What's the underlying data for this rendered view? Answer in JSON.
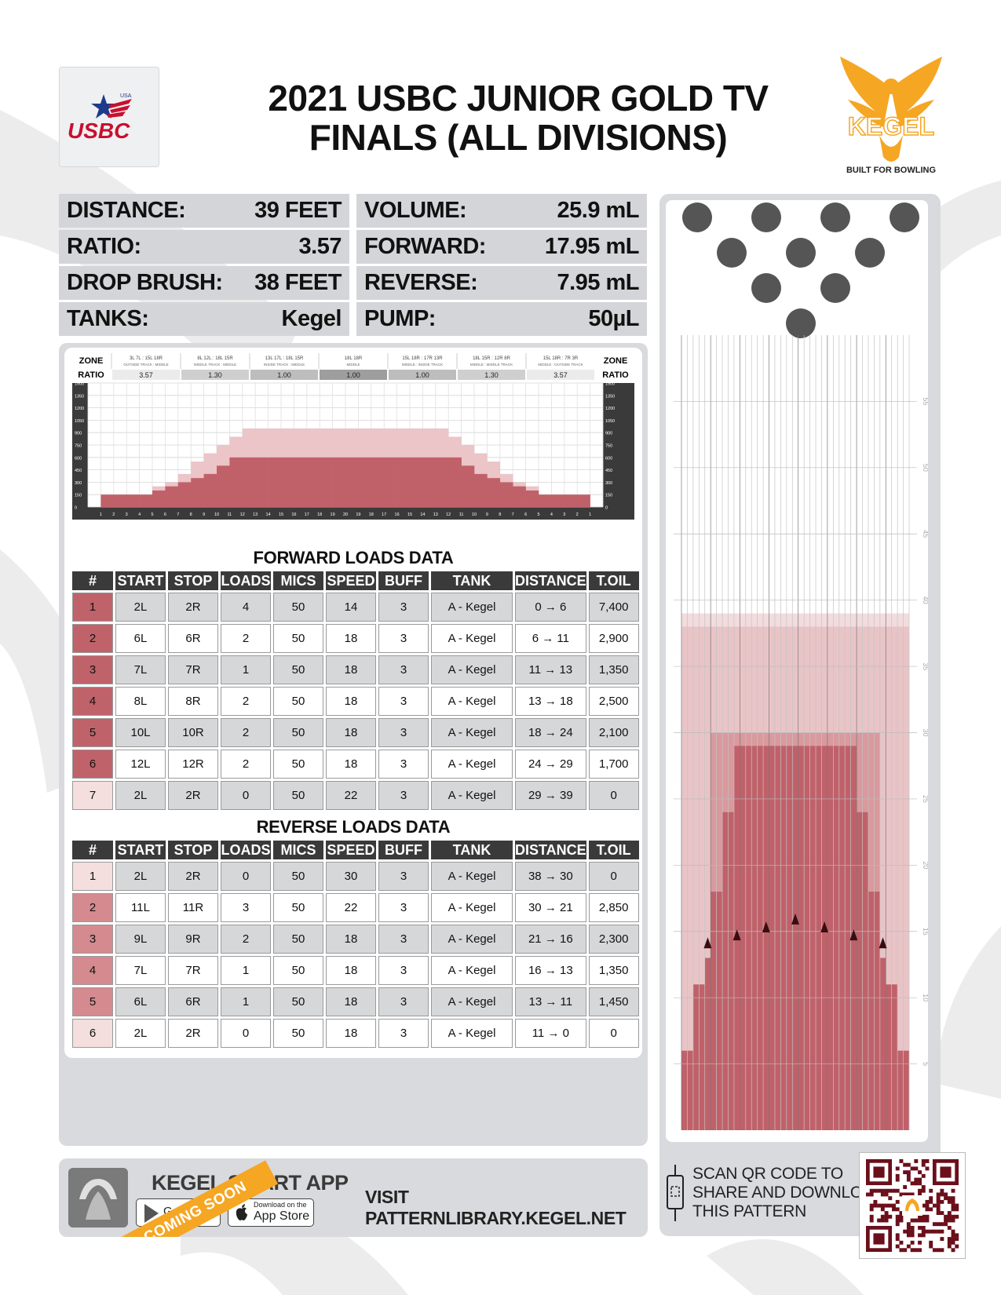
{
  "title": "2021 USBC JUNIOR GOLD TV FINALS (ALL DIVISIONS)",
  "logos": {
    "usbc_text": "USBC",
    "usbc_small": "USA",
    "kegel_text": "KEGEL",
    "kegel_tagline": "BUILT FOR BOWLING"
  },
  "stats_left": [
    {
      "label": "DISTANCE:",
      "value": "39 FEET"
    },
    {
      "label": "RATIO:",
      "value": "3.57"
    },
    {
      "label": "DROP BRUSH:",
      "value": "38 FEET"
    },
    {
      "label": "TANKS:",
      "value": "Kegel"
    }
  ],
  "stats_right": [
    {
      "label": "VOLUME:",
      "value": "25.9 mL"
    },
    {
      "label": "FORWARD:",
      "value": "17.95 mL"
    },
    {
      "label": "REVERSE:",
      "value": "7.95 mL"
    },
    {
      "label": "PUMP:",
      "value": "50µL"
    }
  ],
  "chart_data": {
    "type": "area",
    "title": "",
    "zone_label": "ZONE",
    "ratio_label": "RATIO",
    "zones": [
      {
        "name": "3L 7L : 15L 18R",
        "desc": "OUTSIDE TRACK : MIDDLE",
        "ratio": "3.57"
      },
      {
        "name": "8L 12L : 18L 15R",
        "desc": "MIDDLE TRACK : MIDDLE",
        "ratio": "1.30"
      },
      {
        "name": "13L 17L : 18L 15R",
        "desc": "INSIDE TRACK : MIDDLE",
        "ratio": "1.00"
      },
      {
        "name": "18L 18R",
        "desc": "MIDDLE",
        "ratio": "1.00"
      },
      {
        "name": "15L 18R : 17R 13R",
        "desc": "MIDDLE : INSIDE TRACK",
        "ratio": "1.00"
      },
      {
        "name": "18L 15R : 12R 8R",
        "desc": "MIDDLE : MIDDLE TRACK",
        "ratio": "1.30"
      },
      {
        "name": "15L 18R : 7R 3R",
        "desc": "MIDDLE : OUTSIDE TRACK",
        "ratio": "3.57"
      }
    ],
    "y_ticks": [
      "1500",
      "1350",
      "1200",
      "1050",
      "900",
      "750",
      "600",
      "450",
      "300",
      "150",
      "0"
    ],
    "ylim": [
      0,
      1500
    ],
    "x_ticks": [
      "1",
      "2",
      "3",
      "4",
      "5",
      "6",
      "7",
      "8",
      "9",
      "10",
      "11",
      "12",
      "13",
      "14",
      "15",
      "16",
      "17",
      "18",
      "19",
      "20",
      "19",
      "18",
      "17",
      "16",
      "15",
      "14",
      "13",
      "12",
      "11",
      "10",
      "9",
      "8",
      "7",
      "6",
      "5",
      "4",
      "3",
      "2",
      "1"
    ],
    "series": [
      {
        "values": [
          0,
          150,
          150,
          150,
          150,
          200,
          250,
          300,
          350,
          400,
          500,
          600,
          600,
          600,
          600,
          600,
          600,
          600,
          600,
          600,
          600,
          600,
          600,
          600,
          600,
          600,
          600,
          600,
          600,
          500,
          400,
          350,
          300,
          250,
          200,
          150,
          150,
          150,
          150,
          0
        ]
      },
      {
        "values": [
          0,
          150,
          150,
          150,
          150,
          250,
          300,
          400,
          550,
          650,
          750,
          850,
          950,
          950,
          950,
          950,
          950,
          950,
          950,
          950,
          950,
          950,
          950,
          950,
          950,
          950,
          950,
          950,
          850,
          750,
          650,
          550,
          400,
          300,
          250,
          150,
          150,
          150,
          150,
          0
        ]
      }
    ]
  },
  "forward": {
    "title": "FORWARD LOADS DATA",
    "headers": [
      "#",
      "START",
      "STOP",
      "LOADS",
      "MICS",
      "SPEED",
      "BUFF",
      "TANK",
      "DISTANCE",
      "T.OIL"
    ],
    "rows": [
      {
        "n": "1",
        "start": "2L",
        "stop": "2R",
        "loads": "4",
        "mics": "50",
        "speed": "14",
        "buff": "3",
        "tank": "A - Kegel",
        "dist": "0 → 6",
        "toil": "7,400",
        "color": "#c0626a"
      },
      {
        "n": "2",
        "start": "6L",
        "stop": "6R",
        "loads": "2",
        "mics": "50",
        "speed": "18",
        "buff": "3",
        "tank": "A - Kegel",
        "dist": "6 → 11",
        "toil": "2,900",
        "color": "#c0626a"
      },
      {
        "n": "3",
        "start": "7L",
        "stop": "7R",
        "loads": "1",
        "mics": "50",
        "speed": "18",
        "buff": "3",
        "tank": "A - Kegel",
        "dist": "11 → 13",
        "toil": "1,350",
        "color": "#c0626a"
      },
      {
        "n": "4",
        "start": "8L",
        "stop": "8R",
        "loads": "2",
        "mics": "50",
        "speed": "18",
        "buff": "3",
        "tank": "A - Kegel",
        "dist": "13 → 18",
        "toil": "2,500",
        "color": "#c0626a"
      },
      {
        "n": "5",
        "start": "10L",
        "stop": "10R",
        "loads": "2",
        "mics": "50",
        "speed": "18",
        "buff": "3",
        "tank": "A - Kegel",
        "dist": "18 → 24",
        "toil": "2,100",
        "color": "#c0626a"
      },
      {
        "n": "6",
        "start": "12L",
        "stop": "12R",
        "loads": "2",
        "mics": "50",
        "speed": "18",
        "buff": "3",
        "tank": "A - Kegel",
        "dist": "24 → 29",
        "toil": "1,700",
        "color": "#c0626a"
      },
      {
        "n": "7",
        "start": "2L",
        "stop": "2R",
        "loads": "0",
        "mics": "50",
        "speed": "22",
        "buff": "3",
        "tank": "A - Kegel",
        "dist": "29 → 39",
        "toil": "0",
        "color": "#f4dede"
      }
    ]
  },
  "reverse": {
    "title": "REVERSE LOADS DATA",
    "headers": [
      "#",
      "START",
      "STOP",
      "LOADS",
      "MICS",
      "SPEED",
      "BUFF",
      "TANK",
      "DISTANCE",
      "T.OIL"
    ],
    "rows": [
      {
        "n": "1",
        "start": "2L",
        "stop": "2R",
        "loads": "0",
        "mics": "50",
        "speed": "30",
        "buff": "3",
        "tank": "A - Kegel",
        "dist": "38 → 30",
        "toil": "0",
        "color": "#f4dede"
      },
      {
        "n": "2",
        "start": "11L",
        "stop": "11R",
        "loads": "3",
        "mics": "50",
        "speed": "22",
        "buff": "3",
        "tank": "A - Kegel",
        "dist": "30 → 21",
        "toil": "2,850",
        "color": "#d48a8f"
      },
      {
        "n": "3",
        "start": "9L",
        "stop": "9R",
        "loads": "2",
        "mics": "50",
        "speed": "18",
        "buff": "3",
        "tank": "A - Kegel",
        "dist": "21 → 16",
        "toil": "2,300",
        "color": "#d48a8f"
      },
      {
        "n": "4",
        "start": "7L",
        "stop": "7R",
        "loads": "1",
        "mics": "50",
        "speed": "18",
        "buff": "3",
        "tank": "A - Kegel",
        "dist": "16 → 13",
        "toil": "1,350",
        "color": "#d48a8f"
      },
      {
        "n": "5",
        "start": "6L",
        "stop": "6R",
        "loads": "1",
        "mics": "50",
        "speed": "18",
        "buff": "3",
        "tank": "A - Kegel",
        "dist": "13 → 11",
        "toil": "1,450",
        "color": "#d48a8f"
      },
      {
        "n": "6",
        "start": "2L",
        "stop": "2R",
        "loads": "0",
        "mics": "50",
        "speed": "18",
        "buff": "3",
        "tank": "A - Kegel",
        "dist": "11 → 0",
        "toil": "0",
        "color": "#f4dede"
      }
    ]
  },
  "lane": {
    "distance_ticks": [
      "55",
      "50",
      "45",
      "40",
      "35",
      "30",
      "25",
      "20",
      "15",
      "10",
      "5"
    ],
    "layers": [
      {
        "color": "#f2dcdd",
        "x0": 1,
        "x1": 39,
        "len": 39
      },
      {
        "color": "#e9c4c6",
        "x0": 1,
        "x1": 39,
        "len": 38
      },
      {
        "color": "#d9999d",
        "x0": 6,
        "x1": 34,
        "len": 30
      },
      {
        "color": "#c0616a",
        "x0": 7,
        "x1": 33,
        "len": 29
      }
    ],
    "profile_steps": [
      {
        "board_from": 1,
        "board_to": 39,
        "len": 6
      },
      {
        "board_from": 3,
        "board_to": 37,
        "len": 11
      },
      {
        "board_from": 5,
        "board_to": 35,
        "len": 13
      },
      {
        "board_from": 6,
        "board_to": 34,
        "len": 18
      },
      {
        "board_from": 8,
        "board_to": 32,
        "len": 24
      },
      {
        "board_from": 10,
        "board_to": 30,
        "len": 29
      }
    ]
  },
  "footer": {
    "app_title": "KEGEL SMART APP",
    "coming_soon": "COMING SOON",
    "google": "Google Play",
    "apple_sub": "Download on the",
    "apple": "App Store",
    "visit": "VISIT PATTERNLIBRARY.KEGEL.NET",
    "qr_line1": "SCAN QR CODE TO",
    "qr_line2": "SHARE AND DOWNLOAD",
    "qr_line3": "THIS PATTERN"
  }
}
